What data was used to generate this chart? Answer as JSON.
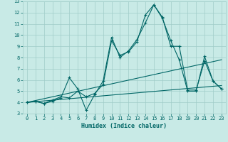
{
  "title": "",
  "xlabel": "Humidex (Indice chaleur)",
  "xlim": [
    -0.5,
    23.5
  ],
  "ylim": [
    3,
    13
  ],
  "xticks": [
    0,
    1,
    2,
    3,
    4,
    5,
    6,
    7,
    8,
    9,
    10,
    11,
    12,
    13,
    14,
    15,
    16,
    17,
    18,
    19,
    20,
    21,
    22,
    23
  ],
  "yticks": [
    3,
    4,
    5,
    6,
    7,
    8,
    9,
    10,
    11,
    12,
    13
  ],
  "bg_color": "#c8eae6",
  "grid_color": "#a0ccc8",
  "line_color": "#006666",
  "line1_x": [
    0,
    1,
    2,
    3,
    4,
    5,
    6,
    7,
    8,
    9,
    10,
    11,
    12,
    13,
    14,
    15,
    16,
    17,
    18,
    19,
    20,
    21,
    22,
    23
  ],
  "line1_y": [
    4.0,
    4.1,
    3.9,
    4.1,
    4.4,
    6.2,
    5.2,
    3.3,
    4.7,
    5.9,
    9.8,
    8.0,
    8.6,
    9.6,
    11.1,
    12.7,
    11.5,
    9.5,
    7.8,
    5.0,
    5.0,
    8.1,
    5.9,
    5.2
  ],
  "line2_x": [
    0,
    1,
    2,
    3,
    4,
    5,
    6,
    7,
    8,
    9,
    10,
    11,
    12,
    13,
    14,
    15,
    16,
    17,
    18,
    19,
    20,
    21,
    22,
    23
  ],
  "line2_y": [
    4.0,
    4.1,
    3.9,
    4.2,
    4.5,
    4.4,
    5.0,
    4.5,
    4.8,
    5.6,
    9.5,
    8.2,
    8.5,
    9.4,
    11.8,
    12.7,
    11.6,
    9.0,
    9.0,
    5.1,
    5.1,
    7.7,
    5.9,
    5.2
  ],
  "line3_x": [
    0,
    23
  ],
  "line3_y": [
    4.0,
    7.8
  ],
  "line4_x": [
    0,
    23
  ],
  "line4_y": [
    4.0,
    5.5
  ]
}
